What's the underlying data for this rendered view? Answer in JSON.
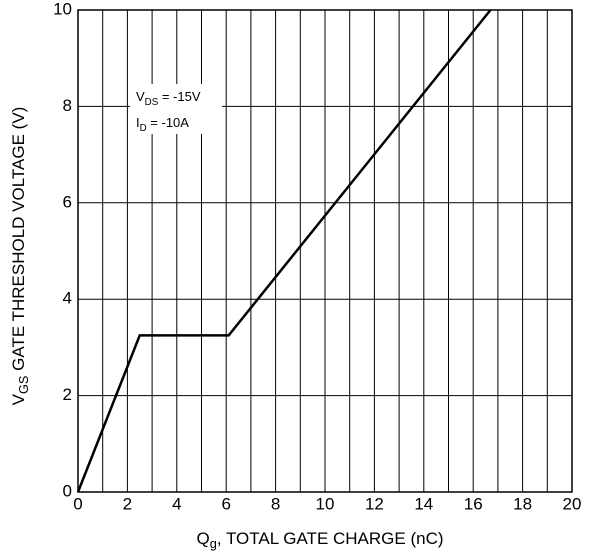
{
  "chart_data": {
    "type": "line",
    "x_label": {
      "text": "Q",
      "sub": "g",
      "rest": ", TOTAL GATE CHARGE (nC)"
    },
    "y_label": {
      "text": "V",
      "sub": "GS",
      "rest": " GATE THRESHOLD VOLTAGE (V)"
    },
    "annotations": [
      {
        "text": "V",
        "sub": "DS",
        "rest": " = -15V"
      },
      {
        "text": "I",
        "sub": "D",
        "rest": " = -10A"
      }
    ],
    "series": [
      {
        "name": "VGS",
        "color": "#000000",
        "x": [
          0,
          2.5,
          6.1,
          16.7
        ],
        "values": [
          0,
          3.25,
          3.25,
          10
        ]
      }
    ],
    "xlim": [
      0,
      20
    ],
    "xticks": [
      0,
      2,
      4,
      6,
      8,
      10,
      12,
      14,
      16,
      18,
      20
    ],
    "x_minor_ticks": [
      1,
      3,
      5,
      7,
      9,
      11,
      13,
      15,
      17,
      19
    ],
    "ylim": [
      0,
      10
    ],
    "yticks": [
      0,
      2,
      4,
      6,
      8,
      10
    ],
    "grid": true
  }
}
